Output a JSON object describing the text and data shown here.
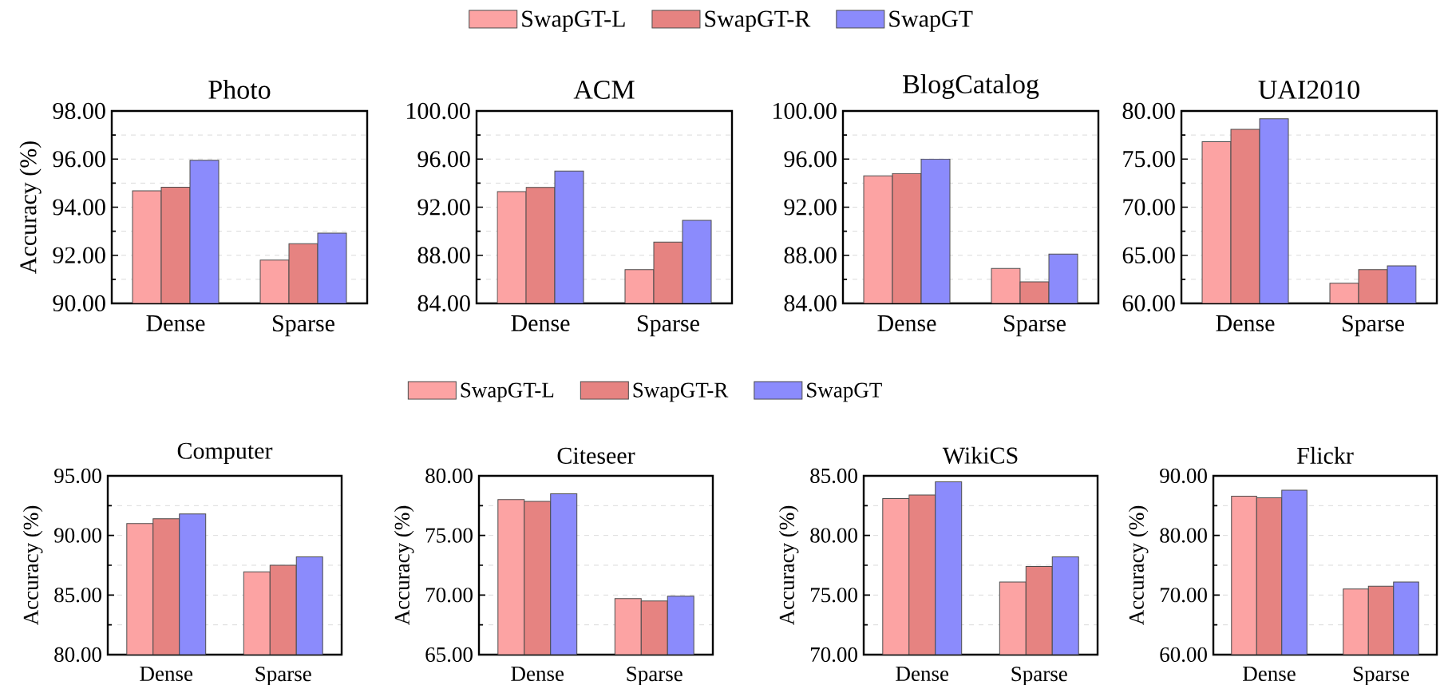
{
  "chart_data": [
    {
      "type": "bar",
      "title": "Photo",
      "ylabel": "Accuracy (%)",
      "categories": [
        "Dense",
        "Sparse"
      ],
      "legend": "top",
      "grid": "y",
      "ylim": [
        90,
        98
      ],
      "yticks": [
        {
          "value": 90,
          "label": "90.00"
        },
        {
          "value": 92,
          "label": "92.00"
        },
        {
          "value": 94,
          "label": "94.00"
        },
        {
          "value": 96,
          "label": "96.00"
        },
        {
          "value": 98,
          "label": "98.00"
        }
      ],
      "series": [
        {
          "name": "SwapGT-L",
          "color": "#fca3a3",
          "values": [
            94.68,
            91.8
          ]
        },
        {
          "name": "SwapGT-R",
          "color": "#e68381",
          "values": [
            94.83,
            92.48
          ]
        },
        {
          "name": "SwapGT",
          "color": "#8b8bfc",
          "values": [
            95.95,
            92.92
          ]
        }
      ]
    },
    {
      "type": "bar",
      "title": "ACM",
      "categories": [
        "Dense",
        "Sparse"
      ],
      "grid": "y",
      "ylim": [
        84,
        100
      ],
      "yticks": [
        {
          "value": 84,
          "label": "84.00"
        },
        {
          "value": 88,
          "label": "88.00"
        },
        {
          "value": 92,
          "label": "92.00"
        },
        {
          "value": 96,
          "label": "96.00"
        },
        {
          "value": 100,
          "label": "100.00"
        }
      ],
      "series": [
        {
          "color": "#fca3a3",
          "values": [
            93.3,
            86.8
          ]
        },
        {
          "color": "#e68381",
          "values": [
            93.65,
            89.1
          ]
        },
        {
          "color": "#8b8bfc",
          "values": [
            95.0,
            90.9
          ]
        }
      ]
    },
    {
      "type": "bar",
      "title": "BlogCatalog",
      "categories": [
        "Dense",
        "Sparse"
      ],
      "grid": "y",
      "ylim": [
        84,
        100
      ],
      "yticks": [
        {
          "value": 84,
          "label": "84.00"
        },
        {
          "value": 88,
          "label": "88.00"
        },
        {
          "value": 92,
          "label": "92.00"
        },
        {
          "value": 96,
          "label": "96.00"
        },
        {
          "value": 100,
          "label": "100.00"
        }
      ],
      "series": [
        {
          "color": "#fca3a3",
          "values": [
            94.6,
            86.9
          ]
        },
        {
          "color": "#e68381",
          "values": [
            94.8,
            85.8
          ]
        },
        {
          "color": "#8b8bfc",
          "values": [
            96.0,
            88.1
          ]
        }
      ]
    },
    {
      "type": "bar",
      "title": "UAI2010",
      "categories": [
        "Dense",
        "Sparse"
      ],
      "grid": "y",
      "ylim": [
        60,
        80
      ],
      "yticks": [
        {
          "value": 60,
          "label": "60.00"
        },
        {
          "value": 65,
          "label": "65.00"
        },
        {
          "value": 70,
          "label": "70.00"
        },
        {
          "value": 75,
          "label": "75.00"
        },
        {
          "value": 80,
          "label": "80.00"
        }
      ],
      "series": [
        {
          "color": "#fca3a3",
          "values": [
            76.8,
            62.1
          ]
        },
        {
          "color": "#e68381",
          "values": [
            78.1,
            63.5
          ]
        },
        {
          "color": "#8b8bfc",
          "values": [
            79.2,
            63.9
          ]
        }
      ]
    },
    {
      "type": "bar",
      "title": "Computer",
      "ylabel": "Accuracy (%)",
      "categories": [
        "Dense",
        "Sparse"
      ],
      "legend": "top",
      "grid": "y",
      "ylim": [
        80,
        95
      ],
      "yticks": [
        {
          "value": 80,
          "label": "80.00"
        },
        {
          "value": 85,
          "label": "85.00"
        },
        {
          "value": 90,
          "label": "90.00"
        },
        {
          "value": 95,
          "label": "95.00"
        }
      ],
      "series": [
        {
          "name": "SwapGT-L",
          "color": "#fca3a3",
          "values": [
            91.0,
            86.95
          ]
        },
        {
          "name": "SwapGT-R",
          "color": "#e68381",
          "values": [
            91.4,
            87.5
          ]
        },
        {
          "name": "SwapGT",
          "color": "#8b8bfc",
          "values": [
            91.8,
            88.2
          ]
        }
      ]
    },
    {
      "type": "bar",
      "title": "Citeseer",
      "ylabel": "Accuracy (%)",
      "categories": [
        "Dense",
        "Sparse"
      ],
      "grid": "y",
      "ylim": [
        65,
        80
      ],
      "yticks": [
        {
          "value": 65,
          "label": "65.00"
        },
        {
          "value": 70,
          "label": "70.00"
        },
        {
          "value": 75,
          "label": "75.00"
        },
        {
          "value": 80,
          "label": "80.00"
        }
      ],
      "series": [
        {
          "color": "#fca3a3",
          "values": [
            78.0,
            69.7
          ]
        },
        {
          "color": "#e68381",
          "values": [
            77.85,
            69.5
          ]
        },
        {
          "color": "#8b8bfc",
          "values": [
            78.5,
            69.9
          ]
        }
      ]
    },
    {
      "type": "bar",
      "title": "WikiCS",
      "ylabel": "Accuracy (%)",
      "categories": [
        "Dense",
        "Sparse"
      ],
      "grid": "y",
      "ylim": [
        70,
        85
      ],
      "yticks": [
        {
          "value": 70,
          "label": "70.00"
        },
        {
          "value": 75,
          "label": "75.00"
        },
        {
          "value": 80,
          "label": "80.00"
        },
        {
          "value": 85,
          "label": "85.00"
        }
      ],
      "series": [
        {
          "color": "#fca3a3",
          "values": [
            83.1,
            76.1
          ]
        },
        {
          "color": "#e68381",
          "values": [
            83.4,
            77.4
          ]
        },
        {
          "color": "#8b8bfc",
          "values": [
            84.5,
            78.2
          ]
        }
      ]
    },
    {
      "type": "bar",
      "title": "Flickr",
      "ylabel": "Accuracy (%)",
      "categories": [
        "Dense",
        "Sparse"
      ],
      "grid": "y",
      "ylim": [
        60,
        90
      ],
      "yticks": [
        {
          "value": 60,
          "label": "60.00"
        },
        {
          "value": 70,
          "label": "70.00"
        },
        {
          "value": 80,
          "label": "80.00"
        },
        {
          "value": 90,
          "label": "90.00"
        }
      ],
      "series": [
        {
          "color": "#fca3a3",
          "values": [
            86.6,
            71.0
          ]
        },
        {
          "color": "#e68381",
          "values": [
            86.3,
            71.5
          ]
        },
        {
          "color": "#8b8bfc",
          "values": [
            87.6,
            72.2
          ]
        }
      ]
    }
  ]
}
